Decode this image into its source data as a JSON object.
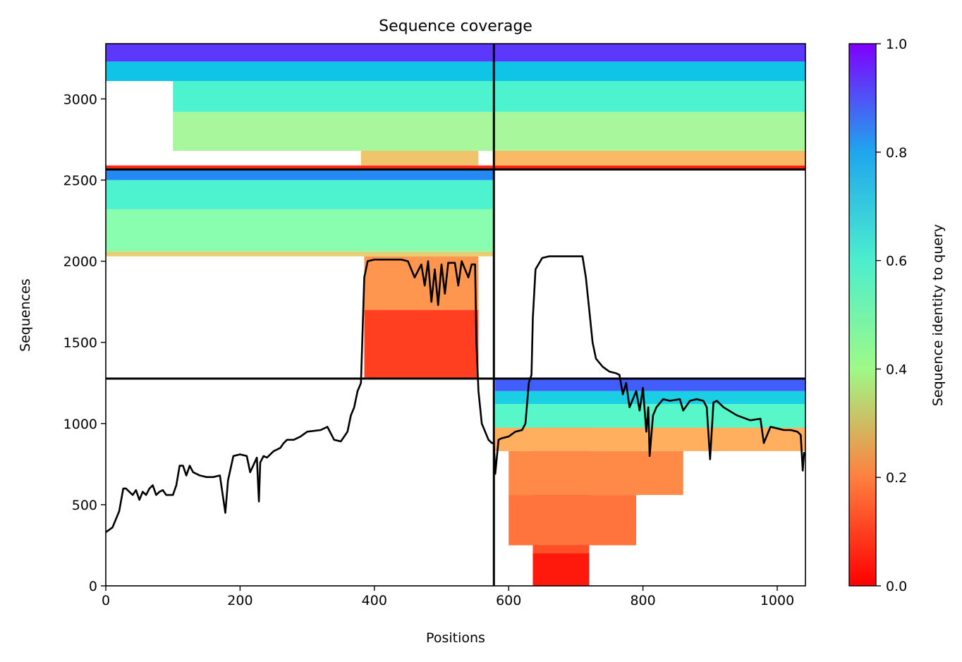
{
  "chart_data": {
    "type": "heatmap",
    "title": "Sequence coverage",
    "xlabel": "Positions",
    "ylabel": "Sequences",
    "xlim": [
      0,
      1042
    ],
    "ylim": [
      0,
      3340
    ],
    "x_ticks": [
      0,
      200,
      400,
      600,
      800,
      1000
    ],
    "y_ticks": [
      0,
      500,
      1000,
      1500,
      2000,
      2500,
      3000
    ],
    "grid": false,
    "colorbar": {
      "label": "Sequence identity to query",
      "range": [
        0,
        1
      ],
      "ticks": [
        "0.0",
        "0.2",
        "0.4",
        "0.6",
        "0.8",
        "1.0"
      ],
      "colormap": "rainbow"
    },
    "chain_boundaries": {
      "x": [
        578
      ],
      "y": [
        1277,
        2565
      ]
    },
    "blocks": [
      {
        "name": "chain A x group 1",
        "x": [
          0,
          578
        ],
        "y": [
          0,
          1277
        ],
        "filled": false
      },
      {
        "name": "chain B x group 1",
        "x": [
          578,
          1042
        ],
        "y": [
          0,
          1277
        ],
        "bands": [
          {
            "x": [
              636,
              720
            ],
            "y": [
              0,
              975
            ],
            "identity": 0.1
          },
          {
            "x": [
              636,
              720
            ],
            "y": [
              0,
              200
            ],
            "identity": 0.03
          },
          {
            "x": [
              600,
              790
            ],
            "y": [
              250,
              560
            ],
            "identity": 0.15
          },
          {
            "x": [
              600,
              860
            ],
            "y": [
              560,
              830
            ],
            "identity": 0.18
          },
          {
            "x": [
              580,
              1042
            ],
            "y": [
              830,
              975
            ],
            "identity": 0.24
          },
          {
            "x": [
              580,
              1042
            ],
            "y": [
              975,
              1120
            ],
            "identity": 0.58
          },
          {
            "x": [
              580,
              1042
            ],
            "y": [
              1120,
              1200
            ],
            "identity": 0.7
          },
          {
            "x": [
              580,
              1042
            ],
            "y": [
              1200,
              1277
            ],
            "identity": 0.88
          }
        ]
      },
      {
        "name": "chain A x group 2",
        "x": [
          0,
          578
        ],
        "y": [
          1277,
          2565
        ],
        "bands": [
          {
            "x": [
              385,
              555
            ],
            "y": [
              1277,
              1700
            ],
            "identity": 0.08
          },
          {
            "x": [
              385,
              555
            ],
            "y": [
              1700,
              2030
            ],
            "identity": 0.2
          },
          {
            "x": [
              0,
              578
            ],
            "y": [
              2030,
              2060
            ],
            "identity": 0.3
          },
          {
            "x": [
              0,
              578
            ],
            "y": [
              2060,
              2320
            ],
            "identity": 0.48
          },
          {
            "x": [
              0,
              578
            ],
            "y": [
              2320,
              2500
            ],
            "identity": 0.6
          },
          {
            "x": [
              0,
              578
            ],
            "y": [
              2500,
              2565
            ],
            "identity": 0.82
          }
        ]
      },
      {
        "name": "chain B x group 2",
        "x": [
          578,
          1042
        ],
        "y": [
          1277,
          2565
        ],
        "filled": false
      },
      {
        "name": "chain A x group 3",
        "x": [
          0,
          578
        ],
        "y": [
          2565,
          3340
        ],
        "bands": [
          {
            "x": [
              0,
              578
            ],
            "y": [
              2565,
              2590
            ],
            "identity": 0.05
          },
          {
            "x": [
              380,
              555
            ],
            "y": [
              2590,
              2680
            ],
            "identity": 0.28
          },
          {
            "x": [
              100,
              578
            ],
            "y": [
              2680,
              2920
            ],
            "identity": 0.42
          },
          {
            "x": [
              100,
              578
            ],
            "y": [
              2920,
              3110
            ],
            "identity": 0.6
          },
          {
            "x": [
              0,
              578
            ],
            "y": [
              3110,
              3230
            ],
            "identity": 0.72
          },
          {
            "x": [
              0,
              578
            ],
            "y": [
              3230,
              3340
            ],
            "identity": 0.93
          }
        ]
      },
      {
        "name": "chain B x group 3",
        "x": [
          578,
          1042
        ],
        "y": [
          2565,
          3340
        ],
        "bands": [
          {
            "x": [
              578,
              1042
            ],
            "y": [
              2565,
              2590
            ],
            "identity": 0.04
          },
          {
            "x": [
              578,
              1042
            ],
            "y": [
              2590,
              2680
            ],
            "identity": 0.26
          },
          {
            "x": [
              578,
              1042
            ],
            "y": [
              2680,
              2920
            ],
            "identity": 0.42
          },
          {
            "x": [
              578,
              1042
            ],
            "y": [
              2920,
              3110
            ],
            "identity": 0.6
          },
          {
            "x": [
              578,
              1042
            ],
            "y": [
              3110,
              3230
            ],
            "identity": 0.72
          },
          {
            "x": [
              578,
              1042
            ],
            "y": [
              3230,
              3340
            ],
            "identity": 0.93
          }
        ]
      }
    ],
    "coverage_line": {
      "x": [
        0,
        10,
        20,
        26,
        30,
        40,
        45,
        50,
        55,
        60,
        65,
        70,
        75,
        80,
        85,
        90,
        100,
        105,
        110,
        115,
        120,
        125,
        130,
        135,
        140,
        150,
        160,
        170,
        178,
        182,
        190,
        200,
        210,
        215,
        225,
        228,
        230,
        235,
        240,
        250,
        260,
        265,
        270,
        280,
        290,
        300,
        320,
        330,
        340,
        350,
        355,
        360,
        365,
        370,
        375,
        380,
        385,
        390,
        400,
        420,
        440,
        450,
        460,
        470,
        475,
        480,
        485,
        490,
        495,
        500,
        505,
        510,
        520,
        525,
        530,
        540,
        545,
        550,
        552,
        555,
        560,
        570,
        575,
        578,
        580,
        585,
        590,
        600,
        610,
        620,
        625,
        630,
        634,
        636,
        640,
        650,
        660,
        700,
        710,
        715,
        720,
        725,
        730,
        740,
        750,
        760,
        765,
        770,
        775,
        780,
        785,
        790,
        795,
        800,
        805,
        808,
        810,
        815,
        820,
        830,
        840,
        855,
        860,
        870,
        880,
        890,
        895,
        900,
        905,
        910,
        920,
        940,
        960,
        975,
        980,
        990,
        1000,
        1010,
        1020,
        1030,
        1035,
        1038,
        1040,
        1042
      ],
      "y": [
        330,
        360,
        460,
        600,
        600,
        560,
        590,
        530,
        580,
        560,
        600,
        620,
        560,
        580,
        590,
        560,
        560,
        620,
        740,
        740,
        680,
        740,
        700,
        690,
        680,
        670,
        670,
        680,
        450,
        650,
        800,
        810,
        800,
        700,
        790,
        520,
        760,
        800,
        790,
        830,
        850,
        880,
        900,
        900,
        920,
        950,
        960,
        980,
        900,
        890,
        920,
        950,
        1050,
        1100,
        1200,
        1250,
        1900,
        2000,
        2010,
        2010,
        2010,
        2000,
        1900,
        1980,
        1850,
        2000,
        1750,
        1950,
        1730,
        1980,
        1800,
        1990,
        1990,
        1850,
        2000,
        1900,
        1980,
        1980,
        1500,
        1200,
        1000,
        900,
        880,
        880,
        690,
        900,
        910,
        920,
        950,
        960,
        1000,
        1250,
        1300,
        1650,
        1950,
        2020,
        2030,
        2030,
        2030,
        1900,
        1700,
        1500,
        1400,
        1350,
        1320,
        1310,
        1300,
        1180,
        1250,
        1100,
        1150,
        1200,
        1080,
        1220,
        950,
        1100,
        800,
        1050,
        1100,
        1150,
        1140,
        1150,
        1080,
        1140,
        1150,
        1140,
        1100,
        780,
        1130,
        1140,
        1100,
        1050,
        1020,
        1030,
        880,
        980,
        970,
        960,
        960,
        950,
        930,
        710,
        820,
        800,
        610
      ]
    }
  }
}
